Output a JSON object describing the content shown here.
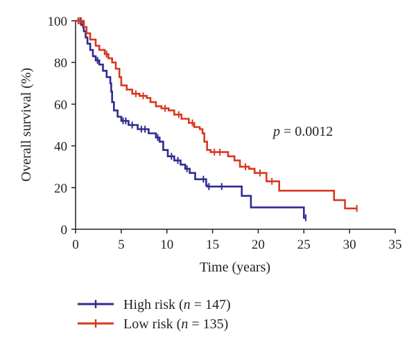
{
  "chart_data": {
    "type": "line",
    "xlabel": "Time (years)",
    "ylabel": "Overall survival (%)",
    "xlim": [
      0,
      35
    ],
    "ylim": [
      0,
      100
    ],
    "xticks": [
      0,
      5,
      10,
      15,
      20,
      25,
      30,
      35
    ],
    "yticks": [
      0,
      20,
      40,
      60,
      80,
      100
    ],
    "grid": false,
    "legend_position": "bottom-left",
    "annotation": {
      "italic": "p",
      "rest": " = 0.0012"
    },
    "series": [
      {
        "name": "High risk (n = 147)",
        "legend_pre": "High risk (",
        "legend_italic": "n",
        "legend_post": " = 147)",
        "color": "#2e2b8f",
        "steps": [
          [
            0,
            100
          ],
          [
            0.6,
            98
          ],
          [
            0.9,
            95
          ],
          [
            1.1,
            92
          ],
          [
            1.3,
            89
          ],
          [
            1.6,
            86
          ],
          [
            1.9,
            83
          ],
          [
            2.2,
            81
          ],
          [
            2.6,
            79
          ],
          [
            3.0,
            76
          ],
          [
            3.4,
            73
          ],
          [
            3.8,
            70
          ],
          [
            3.9,
            66
          ],
          [
            4.0,
            61
          ],
          [
            4.2,
            57
          ],
          [
            4.6,
            54
          ],
          [
            5.0,
            52
          ],
          [
            5.8,
            50
          ],
          [
            6.8,
            48
          ],
          [
            8.0,
            46
          ],
          [
            8.8,
            44
          ],
          [
            9.2,
            42
          ],
          [
            9.6,
            38
          ],
          [
            10.1,
            35
          ],
          [
            10.8,
            33
          ],
          [
            11.5,
            31
          ],
          [
            12.0,
            29
          ],
          [
            12.5,
            27
          ],
          [
            13.1,
            24
          ],
          [
            13.8,
            24
          ],
          [
            14.3,
            21
          ],
          [
            14.4,
            20.5
          ],
          [
            18.1,
            20.5
          ],
          [
            18.2,
            16
          ],
          [
            19.0,
            16
          ],
          [
            19.2,
            10.5
          ],
          [
            24.9,
            10.5
          ],
          [
            25.0,
            5.5
          ],
          [
            25.2,
            5.5
          ]
        ],
        "censors": [
          [
            0.3,
            100
          ],
          [
            0.5,
            100
          ],
          [
            0.8,
            98
          ],
          [
            2.4,
            81
          ],
          [
            5.2,
            52
          ],
          [
            5.5,
            52
          ],
          [
            6.2,
            50
          ],
          [
            7.2,
            48
          ],
          [
            7.6,
            48
          ],
          [
            9.0,
            44
          ],
          [
            10.5,
            35
          ],
          [
            11.2,
            33
          ],
          [
            12.2,
            29
          ],
          [
            14.0,
            24
          ],
          [
            14.6,
            20.5
          ],
          [
            16.0,
            20.5
          ],
          [
            25.2,
            5.5
          ]
        ]
      },
      {
        "name": "Low risk (n = 135)",
        "legend_pre": "Low risk (",
        "legend_italic": "n",
        "legend_post": " = 135)",
        "color": "#d9381e",
        "steps": [
          [
            0,
            100
          ],
          [
            0.9,
            97
          ],
          [
            1.2,
            94
          ],
          [
            1.6,
            91
          ],
          [
            2.2,
            88
          ],
          [
            2.6,
            86
          ],
          [
            3.2,
            84
          ],
          [
            3.6,
            82
          ],
          [
            4.0,
            80
          ],
          [
            4.4,
            77
          ],
          [
            4.8,
            73
          ],
          [
            5.0,
            69
          ],
          [
            5.6,
            67
          ],
          [
            6.2,
            65
          ],
          [
            7.0,
            64
          ],
          [
            7.8,
            63
          ],
          [
            8.2,
            61
          ],
          [
            8.8,
            59
          ],
          [
            9.4,
            58
          ],
          [
            10.2,
            57
          ],
          [
            10.8,
            55
          ],
          [
            11.6,
            53
          ],
          [
            12.4,
            51
          ],
          [
            13.0,
            49
          ],
          [
            13.6,
            48
          ],
          [
            13.9,
            46
          ],
          [
            14.1,
            42
          ],
          [
            14.4,
            38
          ],
          [
            14.8,
            37
          ],
          [
            16.5,
            37
          ],
          [
            16.7,
            35
          ],
          [
            17.4,
            33
          ],
          [
            18.0,
            30
          ],
          [
            19.0,
            29
          ],
          [
            19.6,
            27
          ],
          [
            20.8,
            27
          ],
          [
            20.9,
            23
          ],
          [
            22.2,
            23
          ],
          [
            22.3,
            18.5
          ],
          [
            28.2,
            18.5
          ],
          [
            28.3,
            14
          ],
          [
            29.4,
            14
          ],
          [
            29.5,
            10
          ],
          [
            30.8,
            10
          ]
        ],
        "censors": [
          [
            0.3,
            100
          ],
          [
            0.6,
            100
          ],
          [
            3.4,
            84
          ],
          [
            6.6,
            65
          ],
          [
            7.4,
            64
          ],
          [
            9.8,
            58
          ],
          [
            11.3,
            55
          ],
          [
            12.8,
            51
          ],
          [
            15.2,
            37
          ],
          [
            15.8,
            37
          ],
          [
            18.6,
            30
          ],
          [
            20.2,
            27
          ],
          [
            21.5,
            23
          ],
          [
            30.8,
            10
          ]
        ]
      }
    ]
  }
}
